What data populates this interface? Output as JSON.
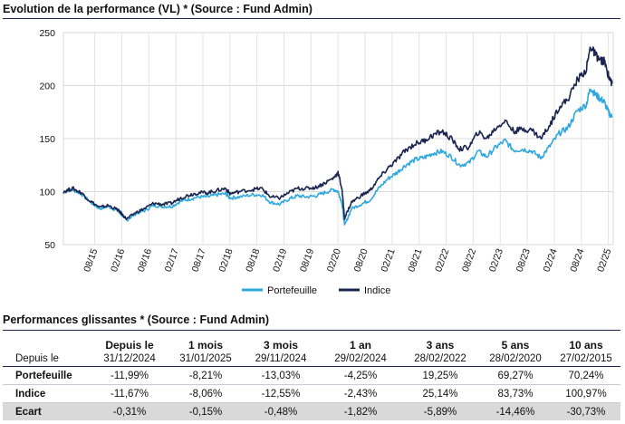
{
  "chart_section": {
    "title": "Evolution de la performance (VL) * (Source : Fund Admin)"
  },
  "chart_data": {
    "type": "line",
    "title": "Evolution de la performance (VL) * (Source : Fund Admin)",
    "ylim": [
      50,
      250
    ],
    "yticks": [
      50,
      100,
      150,
      200,
      250
    ],
    "xlim": [
      2015.0,
      2025.17
    ],
    "xticks": [
      {
        "label": "08/15",
        "t": 2015.58
      },
      {
        "label": "02/16",
        "t": 2016.08
      },
      {
        "label": "08/16",
        "t": 2016.58
      },
      {
        "label": "02/17",
        "t": 2017.08
      },
      {
        "label": "08/17",
        "t": 2017.58
      },
      {
        "label": "02/18",
        "t": 2018.08
      },
      {
        "label": "08/18",
        "t": 2018.58
      },
      {
        "label": "02/19",
        "t": 2019.08
      },
      {
        "label": "08/19",
        "t": 2019.58
      },
      {
        "label": "02/20",
        "t": 2020.08
      },
      {
        "label": "08/20",
        "t": 2020.58
      },
      {
        "label": "02/21",
        "t": 2021.08
      },
      {
        "label": "08/21",
        "t": 2021.58
      },
      {
        "label": "02/22",
        "t": 2022.08
      },
      {
        "label": "08/22",
        "t": 2022.58
      },
      {
        "label": "02/23",
        "t": 2023.08
      },
      {
        "label": "08/23",
        "t": 2023.58
      },
      {
        "label": "02/24",
        "t": 2024.08
      },
      {
        "label": "08/24",
        "t": 2024.58
      },
      {
        "label": "02/25",
        "t": 2025.08
      }
    ],
    "grid": true,
    "legend_position": "bottom-center",
    "series": [
      {
        "name": "Portefeuille",
        "color": "#2ea8df",
        "points": [
          [
            2015.0,
            100
          ],
          [
            2015.17,
            102
          ],
          [
            2015.33,
            98
          ],
          [
            2015.5,
            90
          ],
          [
            2015.67,
            84
          ],
          [
            2015.83,
            86
          ],
          [
            2016.0,
            82
          ],
          [
            2016.08,
            78
          ],
          [
            2016.17,
            73
          ],
          [
            2016.33,
            79
          ],
          [
            2016.5,
            82
          ],
          [
            2016.67,
            87
          ],
          [
            2016.83,
            86
          ],
          [
            2017.0,
            86
          ],
          [
            2017.17,
            91
          ],
          [
            2017.33,
            93
          ],
          [
            2017.5,
            95
          ],
          [
            2017.67,
            95
          ],
          [
            2017.83,
            97
          ],
          [
            2018.0,
            98
          ],
          [
            2018.08,
            94
          ],
          [
            2018.25,
            95
          ],
          [
            2018.5,
            97
          ],
          [
            2018.67,
            97
          ],
          [
            2018.83,
            90
          ],
          [
            2019.0,
            88
          ],
          [
            2019.17,
            93
          ],
          [
            2019.33,
            96
          ],
          [
            2019.5,
            95
          ],
          [
            2019.67,
            96
          ],
          [
            2019.83,
            99
          ],
          [
            2020.0,
            102
          ],
          [
            2020.08,
            100
          ],
          [
            2020.15,
            90
          ],
          [
            2020.2,
            68
          ],
          [
            2020.33,
            84
          ],
          [
            2020.5,
            88
          ],
          [
            2020.67,
            92
          ],
          [
            2020.83,
            103
          ],
          [
            2021.0,
            112
          ],
          [
            2021.17,
            118
          ],
          [
            2021.33,
            125
          ],
          [
            2021.5,
            130
          ],
          [
            2021.67,
            132
          ],
          [
            2021.83,
            136
          ],
          [
            2022.0,
            138
          ],
          [
            2022.17,
            133
          ],
          [
            2022.33,
            125
          ],
          [
            2022.5,
            127
          ],
          [
            2022.67,
            138
          ],
          [
            2022.83,
            133
          ],
          [
            2023.0,
            142
          ],
          [
            2023.17,
            148
          ],
          [
            2023.33,
            139
          ],
          [
            2023.5,
            140
          ],
          [
            2023.67,
            138
          ],
          [
            2023.83,
            132
          ],
          [
            2024.0,
            143
          ],
          [
            2024.17,
            155
          ],
          [
            2024.33,
            160
          ],
          [
            2024.5,
            176
          ],
          [
            2024.67,
            182
          ],
          [
            2024.75,
            198
          ],
          [
            2024.83,
            192
          ],
          [
            2024.92,
            188
          ],
          [
            2025.0,
            185
          ],
          [
            2025.08,
            175
          ],
          [
            2025.15,
            170
          ]
        ]
      },
      {
        "name": "Indice",
        "color": "#1a2450",
        "points": [
          [
            2015.0,
            100
          ],
          [
            2015.17,
            103
          ],
          [
            2015.33,
            99
          ],
          [
            2015.5,
            91
          ],
          [
            2015.67,
            85
          ],
          [
            2015.83,
            87
          ],
          [
            2016.0,
            83
          ],
          [
            2016.08,
            79
          ],
          [
            2016.17,
            74
          ],
          [
            2016.33,
            80
          ],
          [
            2016.5,
            84
          ],
          [
            2016.67,
            89
          ],
          [
            2016.83,
            88
          ],
          [
            2017.0,
            89
          ],
          [
            2017.17,
            94
          ],
          [
            2017.33,
            97
          ],
          [
            2017.5,
            99
          ],
          [
            2017.67,
            99
          ],
          [
            2017.83,
            101
          ],
          [
            2018.0,
            103
          ],
          [
            2018.08,
            98
          ],
          [
            2018.25,
            100
          ],
          [
            2018.5,
            102
          ],
          [
            2018.67,
            103
          ],
          [
            2018.83,
            95
          ],
          [
            2019.0,
            94
          ],
          [
            2019.17,
            99
          ],
          [
            2019.33,
            103
          ],
          [
            2019.5,
            103
          ],
          [
            2019.67,
            104
          ],
          [
            2019.83,
            108
          ],
          [
            2020.0,
            113
          ],
          [
            2020.08,
            118
          ],
          [
            2020.15,
            103
          ],
          [
            2020.2,
            75
          ],
          [
            2020.33,
            90
          ],
          [
            2020.5,
            96
          ],
          [
            2020.67,
            101
          ],
          [
            2020.83,
            112
          ],
          [
            2021.0,
            122
          ],
          [
            2021.17,
            130
          ],
          [
            2021.33,
            139
          ],
          [
            2021.5,
            145
          ],
          [
            2021.67,
            148
          ],
          [
            2021.83,
            153
          ],
          [
            2022.0,
            157
          ],
          [
            2022.17,
            150
          ],
          [
            2022.33,
            140
          ],
          [
            2022.5,
            142
          ],
          [
            2022.67,
            156
          ],
          [
            2022.83,
            150
          ],
          [
            2023.0,
            160
          ],
          [
            2023.17,
            167
          ],
          [
            2023.33,
            157
          ],
          [
            2023.5,
            159
          ],
          [
            2023.67,
            158
          ],
          [
            2023.83,
            150
          ],
          [
            2024.0,
            163
          ],
          [
            2024.17,
            180
          ],
          [
            2024.33,
            187
          ],
          [
            2024.5,
            205
          ],
          [
            2024.67,
            215
          ],
          [
            2024.75,
            237
          ],
          [
            2024.83,
            230
          ],
          [
            2024.92,
            224
          ],
          [
            2025.0,
            223
          ],
          [
            2025.08,
            210
          ],
          [
            2025.15,
            202
          ]
        ]
      }
    ]
  },
  "perf_section": {
    "title": "Performances glissantes * (Source : Fund Admin)"
  },
  "table": {
    "header_periods": [
      "Depuis le",
      "1 mois",
      "3 mois",
      "1 an",
      "3 ans",
      "5 ans",
      "10 ans"
    ],
    "sub_label": "Depuis le",
    "sub_dates": [
      "31/12/2024",
      "31/01/2025",
      "29/11/2024",
      "29/02/2024",
      "28/02/2022",
      "28/02/2020",
      "27/02/2015"
    ],
    "rows": [
      {
        "label": "Portefeuille",
        "values": [
          "-11,99%",
          "-8,21%",
          "-13,03%",
          "-4,25%",
          "19,25%",
          "69,27%",
          "70,24%"
        ]
      },
      {
        "label": "Indice",
        "values": [
          "-11,67%",
          "-8,06%",
          "-12,55%",
          "-2,43%",
          "25,14%",
          "83,73%",
          "100,97%"
        ]
      },
      {
        "label": "Ecart",
        "values": [
          "-0,31%",
          "-0,15%",
          "-0,48%",
          "-1,82%",
          "-5,89%",
          "-14,46%",
          "-30,73%"
        ]
      }
    ]
  }
}
